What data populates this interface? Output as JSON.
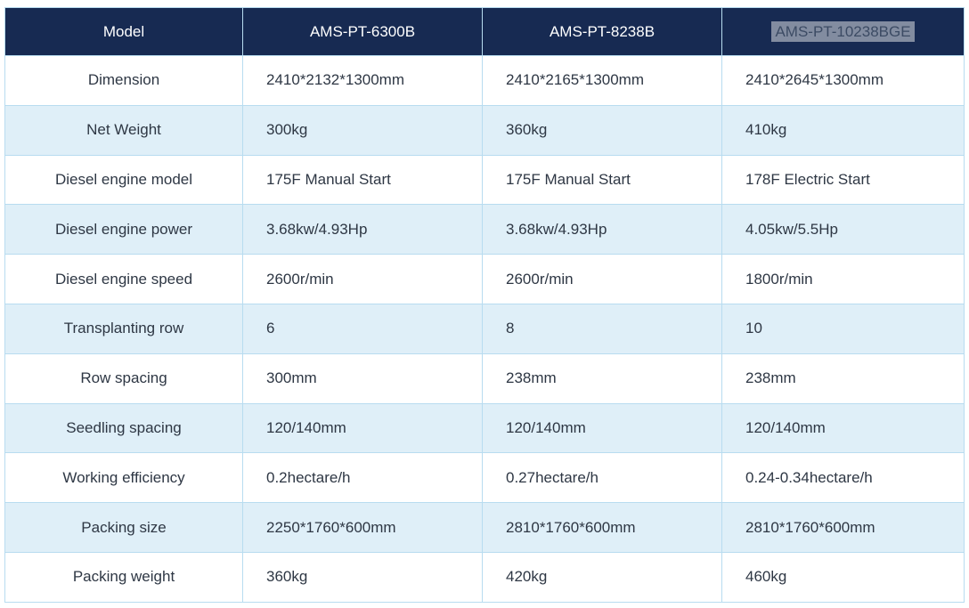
{
  "table": {
    "header": {
      "label_column": "Model",
      "models": [
        "AMS-PT-6300B",
        "AMS-PT-8238B",
        "AMS-PT-10238BGE"
      ],
      "selected_model": "AMS-PT-10238BGE"
    },
    "rows": [
      {
        "label": "Dimension",
        "values": [
          "2410*2132*1300mm",
          "2410*2165*1300mm",
          "2410*2645*1300mm"
        ]
      },
      {
        "label": "Net Weight",
        "values": [
          "300kg",
          "360kg",
          "410kg"
        ]
      },
      {
        "label": "Diesel engine model",
        "values": [
          "175F Manual Start",
          "175F Manual Start",
          "178F Electric Start"
        ]
      },
      {
        "label": "Diesel engine power",
        "values": [
          "3.68kw/4.93Hp",
          "3.68kw/4.93Hp",
          "4.05kw/5.5Hp"
        ]
      },
      {
        "label": "Diesel engine speed",
        "values": [
          "2600r/min",
          "2600r/min",
          "1800r/min"
        ]
      },
      {
        "label": "Transplanting row",
        "values": [
          "6",
          "8",
          "10"
        ]
      },
      {
        "label": "Row spacing",
        "values": [
          "300mm",
          "238mm",
          "238mm"
        ]
      },
      {
        "label": "Seedling spacing",
        "values": [
          "120/140mm",
          "120/140mm",
          "120/140mm"
        ]
      },
      {
        "label": "Working efficiency",
        "values": [
          "0.2hectare/h",
          "0.27hectare/h",
          "0.24-0.34hectare/h"
        ]
      },
      {
        "label": "Packing size",
        "values": [
          "2250*1760*600mm",
          "2810*1760*600mm",
          "2810*1760*600mm"
        ]
      },
      {
        "label": "Packing weight",
        "values": [
          "360kg",
          "420kg",
          "460kg"
        ]
      }
    ]
  },
  "colors": {
    "header_bg": "#172a52",
    "header_text": "#ffffff",
    "row_bg": "#ffffff",
    "row_alt_bg": "#dfeff8",
    "border": "#b8dcf0",
    "body_text": "#2e3744",
    "selection_bg": "#828ca0",
    "selection_text": "#3c4b64"
  }
}
